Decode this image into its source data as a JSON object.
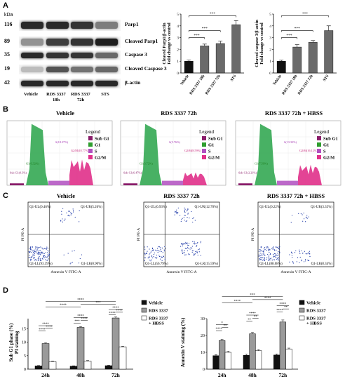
{
  "panels": {
    "A": "A",
    "B": "B",
    "C": "C",
    "D": "D"
  },
  "western": {
    "unit": "kDa",
    "rows": [
      {
        "mw": "116",
        "label": "Parp1"
      },
      {
        "mw": "89",
        "label": "Cleaved Parp1"
      },
      {
        "mw": "35",
        "label": "Caspase 3"
      },
      {
        "mw": "19",
        "label": "Cleaved Caspase 3"
      },
      {
        "mw": "42",
        "label": "β-actin"
      }
    ],
    "lanes": [
      "Vehicle",
      "RDS 3337 18h",
      "RDS 3337 72h",
      "STS"
    ],
    "lane_lines": [
      [
        "Vehicle"
      ],
      [
        "RDS 3337",
        "18h"
      ],
      [
        "RDS 3337",
        "72h"
      ],
      [
        "STS"
      ]
    ]
  },
  "chart_data": [
    {
      "id": "A-parp1",
      "type": "bar",
      "ylabel_lines": [
        "Cleaved Parp1/β-actin",
        "Fold change vs control"
      ],
      "categories": [
        "Vehicle",
        "RDS 3337 18h",
        "RDS 3337 72h",
        "STS"
      ],
      "values": [
        1.0,
        2.3,
        2.5,
        4.1
      ],
      "errors": [
        0.1,
        0.15,
        0.2,
        0.35
      ],
      "ylim": [
        0,
        5
      ],
      "yticks": [
        0,
        1,
        2,
        3,
        4,
        5
      ],
      "significance": [
        {
          "from": 0,
          "to": 1,
          "label": "***"
        },
        {
          "from": 0,
          "to": 2,
          "label": "***"
        },
        {
          "from": 0,
          "to": 3,
          "label": "***"
        }
      ]
    },
    {
      "id": "A-casp3",
      "type": "bar",
      "ylabel_lines": [
        "Cleaved caspase 3/β-actin",
        "Fold change vs control"
      ],
      "categories": [
        "Vehicle",
        "RDS 3337 18h",
        "RDS 3337 72h",
        "STS"
      ],
      "values": [
        1.0,
        2.2,
        2.6,
        3.6
      ],
      "errors": [
        0.08,
        0.2,
        0.15,
        0.4
      ],
      "ylim": [
        0,
        5
      ],
      "yticks": [
        0,
        1,
        2,
        3,
        4,
        5
      ],
      "significance": [
        {
          "from": 0,
          "to": 1,
          "label": "***"
        },
        {
          "from": 0,
          "to": 2,
          "label": "***"
        },
        {
          "from": 0,
          "to": 3,
          "label": "***"
        }
      ]
    },
    {
      "id": "D-subg1",
      "type": "bar",
      "ylabel_lines": [
        "Sub G1 phase (%)",
        "PI staining"
      ],
      "categories": [
        "24h",
        "48h",
        "72h"
      ],
      "series": [
        {
          "name": "Vehicle",
          "values": [
            1.2,
            1.1,
            1.3
          ],
          "errors": [
            0.15,
            0.15,
            0.15
          ],
          "color": "#111111"
        },
        {
          "name": "RDS 3337",
          "values": [
            9.5,
            15.5,
            19.0
          ],
          "errors": [
            0.3,
            0.3,
            0.4
          ],
          "color": "#9a9a9a"
        },
        {
          "name": "RDS 3337 + HBSS",
          "values": [
            2.8,
            3.0,
            8.3
          ],
          "errors": [
            0.2,
            0.2,
            0.2
          ],
          "color": "#ffffff"
        }
      ],
      "ylim": [
        0,
        25
      ],
      "yticks": [
        0,
        5,
        10,
        15,
        20,
        25
      ],
      "legend": "top-right",
      "sig_labels": [
        "****",
        "****",
        "****",
        "***",
        "****",
        "****",
        "****",
        "****",
        "****",
        "****",
        "***",
        "****",
        "****",
        "****",
        "****"
      ]
    },
    {
      "id": "D-annexin",
      "type": "bar",
      "ylabel_lines": [
        "Annexin V staining (%)"
      ],
      "categories": [
        "24h",
        "48h",
        "72h"
      ],
      "series": [
        {
          "name": "Vehicle",
          "values": [
            8.0,
            8.2,
            8.4
          ],
          "errors": [
            0.6,
            0.6,
            0.6
          ],
          "color": "#111111"
        },
        {
          "name": "RDS 3337",
          "values": [
            17.0,
            21.0,
            28.0
          ],
          "errors": [
            0.8,
            0.8,
            1.2
          ],
          "color": "#9a9a9a"
        },
        {
          "name": "RDS 3337 + HBSS",
          "values": [
            10.0,
            11.0,
            12.0
          ],
          "errors": [
            0.6,
            0.6,
            0.5
          ],
          "color": "#ffffff"
        }
      ],
      "ylim": [
        0,
        40
      ],
      "yticks": [
        0,
        10,
        20,
        30,
        40
      ],
      "legend": "top-right",
      "sig_labels": [
        "****",
        "**",
        "*",
        "**",
        "**",
        "****",
        "****",
        "**",
        "****",
        "****",
        "****",
        "***",
        "**"
      ]
    }
  ],
  "legend_D": [
    "Vehicle",
    "RDS 3337",
    "RDS 3337 + HBSS"
  ],
  "legend_D_lines": [
    [
      "Vehicle"
    ],
    [
      "RDS 3337"
    ],
    [
      "RDS 3337",
      "+ HBSS"
    ]
  ],
  "cellcycle": {
    "legend_title": "Legend",
    "legend_items": [
      "Sub G1",
      "G1",
      "S",
      "G2/M"
    ],
    "legend_colors": [
      "#8a1d6a",
      "#2e9e2e",
      "#b04fc0",
      "#e0308a"
    ],
    "plots": [
      {
        "title": "Vehicle",
        "labels": [
          "S(18.37%)",
          "G1(6.32%)",
          "G2/M(18.77%)",
          "Sub G1(0.3%)"
        ]
      },
      {
        "title": "RDS 3337 72h",
        "labels": [
          "S(5.76%)",
          "G1(3.72%)",
          "G2/M(8.59%)",
          "Sub G1(6.47%)"
        ]
      },
      {
        "title": "RDS 3337 72h + HBSS",
        "labels": [
          "S(13.33%)",
          "G1(7.59%)",
          "G2/M(16.12%)",
          "Sub G1(2.21%)"
        ]
      }
    ]
  },
  "flow": {
    "yaxis": "PI PE-A",
    "xaxis": "Annexin V FITC-A",
    "plots": [
      {
        "title": "Vehicle",
        "ul": "Q1-UL(0.46%)",
        "ur": "Q1-UR(5.26%)",
        "ll": "Q1-LL(93.39%)",
        "lr": "Q1-LR(0.90%)"
      },
      {
        "title": "RDS 3337 72h",
        "ul": "Q1-UL(0.93%)",
        "ur": "Q1-UR(12.70%)",
        "ll": "Q1-LL(56.79%)",
        "lr": "Q1-LR(15.59%)"
      },
      {
        "title": "RDS 3337 72h + HBSS",
        "ul": "Q1-UL(0.22%)",
        "ur": "Q1-UR(3.35%)",
        "ll": "Q1-LL(88.08%)",
        "lr": "Q1-LR(8.34%)"
      }
    ]
  }
}
